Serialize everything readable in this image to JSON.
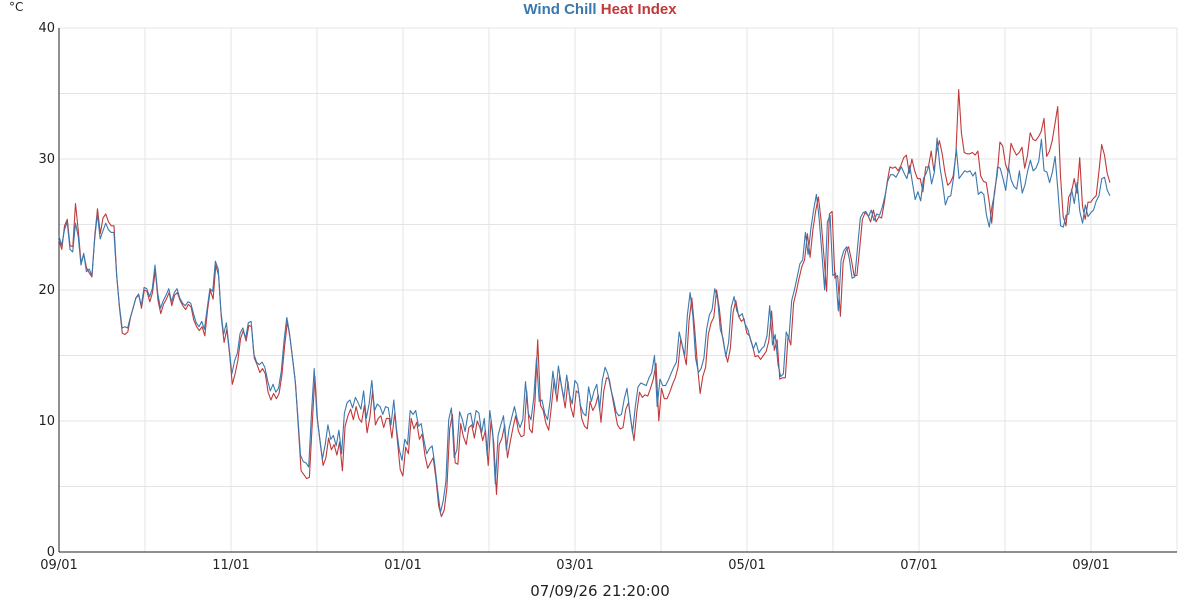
{
  "chart_data": {
    "type": "line",
    "title_parts": [
      "Wind Chill",
      "Heat Index"
    ],
    "unit": "°C",
    "footer": "07/09/26 21:20:00",
    "ylim": [
      0,
      40
    ],
    "yticks": [
      "0",
      "10",
      "20",
      "30",
      "40"
    ],
    "xticks": [
      "09/01",
      "11/01",
      "01/01",
      "03/01",
      "05/01",
      "07/01",
      "09/01"
    ],
    "grid": true,
    "colors": {
      "wind_chill": "#3a78ad",
      "heat_index": "#c0393b"
    },
    "series": [
      {
        "name": "Wind Chill",
        "values": [
          24.1,
          23.4,
          24.6,
          25.2,
          23.1,
          22.9,
          25.1,
          24.1,
          21.9,
          22.8,
          21.4,
          21.6,
          21.1,
          23.9,
          25.8,
          23.9,
          24.5,
          25.1,
          24.6,
          24.4,
          24.4,
          21.2,
          18.8,
          17.1,
          17.2,
          17.1,
          17.9,
          18.6,
          19.4,
          19.7,
          18.8,
          20.2,
          20.1,
          19.5,
          20.1,
          21.9,
          19.7,
          18.6,
          19.2,
          19.6,
          20.1,
          19.1,
          19.8,
          20.1,
          19.4,
          19.0,
          18.8,
          19.1,
          19.0,
          18.2,
          17.5,
          17.2,
          17.6,
          17.0,
          18.6,
          20.1,
          19.9,
          22.2,
          21.6,
          18.4,
          16.6,
          17.5,
          15.6,
          13.6,
          14.6,
          15.2,
          16.7,
          17.1,
          16.3,
          17.5,
          17.6,
          15.1,
          14.5,
          14.3,
          14.5,
          14.1,
          13.1,
          12.3,
          12.8,
          12.2,
          12.5,
          13.8,
          16.1,
          17.9,
          16.7,
          14.9,
          13.2,
          10.5,
          7.4,
          6.9,
          6.8,
          6.5,
          10.6,
          14.0,
          10.4,
          8.7,
          7.1,
          8.2,
          9.7,
          8.6,
          8.9,
          8.1,
          9.3,
          7.5,
          10.6,
          11.4,
          11.6,
          11.0,
          11.8,
          11.4,
          10.9,
          12.3,
          10.2,
          11.3,
          13.1,
          10.8,
          11.3,
          11.1,
          10.5,
          11.1,
          11.0,
          9.7,
          11.6,
          9.4,
          7.8,
          7.0,
          8.6,
          8.2,
          10.8,
          10.5,
          10.8,
          9.6,
          9.8,
          8.5,
          7.5,
          7.9,
          8.1,
          6.6,
          4.7,
          3.0,
          3.9,
          5.4,
          10.1,
          11.0,
          7.2,
          7.8,
          10.7,
          10.1,
          9.2,
          10.5,
          10.6,
          9.5,
          10.8,
          10.6,
          9.1,
          10.2,
          7.4,
          10.8,
          9.2,
          5.2,
          8.9,
          9.7,
          10.4,
          7.8,
          9.4,
          10.3,
          11.1,
          10.1,
          9.5,
          10.1,
          13.0,
          10.6,
          10.1,
          11.7,
          14.8,
          11.5,
          11.6,
          10.6,
          10.1,
          11.6,
          13.8,
          12.1,
          14.2,
          12.8,
          11.7,
          13.5,
          12.0,
          11.3,
          13.1,
          12.8,
          11.2,
          10.6,
          10.4,
          12.6,
          11.5,
          12.3,
          12.8,
          10.8,
          13.1,
          14.1,
          13.6,
          12.5,
          11.7,
          10.7,
          10.4,
          10.5,
          11.7,
          12.5,
          10.7,
          9.1,
          11.1,
          12.6,
          12.9,
          12.8,
          12.7,
          13.3,
          13.7,
          15.0,
          11.1,
          13.2,
          12.7,
          12.7,
          13.1,
          13.6,
          14.1,
          14.5,
          16.8,
          15.9,
          15.0,
          18.1,
          19.8,
          18.0,
          14.8,
          13.7,
          14.0,
          14.8,
          17.0,
          18.1,
          18.5,
          20.1,
          19.3,
          17.0,
          16.3,
          14.9,
          16.0,
          18.7,
          19.5,
          18.4,
          18.0,
          18.2,
          17.4,
          17.0,
          16.2,
          15.5,
          16.0,
          15.2,
          15.5,
          15.7,
          16.5,
          18.8,
          15.8,
          16.6,
          14.3,
          13.4,
          13.6,
          16.8,
          16.3,
          19.2,
          20.0,
          21.0,
          22.0,
          22.3,
          24.4,
          22.7,
          24.7,
          26.1,
          27.3,
          25.5,
          22.8,
          20.0,
          25.2,
          25.7,
          21.1,
          21.3,
          18.4,
          22.3,
          23.0,
          23.3,
          22.4,
          20.9,
          21.0,
          23.2,
          25.5,
          25.9,
          26.0,
          25.6,
          26.1,
          25.3,
          25.8,
          25.7,
          26.3,
          27.2,
          28.3,
          28.8,
          28.8,
          28.6,
          29.0,
          29.4,
          28.9,
          28.5,
          29.5,
          28.2,
          26.9,
          27.5,
          26.8,
          28.5,
          28.9,
          29.5,
          28.1,
          29.0,
          31.6,
          29.4,
          28.1,
          26.5,
          27.1,
          27.2,
          28.6,
          30.8,
          28.5,
          28.8,
          29.1,
          29.0,
          29.1,
          28.7,
          29.0,
          27.3,
          27.5,
          27.3,
          25.7,
          24.8,
          26.4,
          27.4,
          29.4,
          29.3,
          28.5,
          27.6,
          29.4,
          28.4,
          27.9,
          27.7,
          29.1,
          27.4,
          28.0,
          29.1,
          29.9,
          29.1,
          29.3,
          29.8,
          31.5,
          29.1,
          29.0,
          28.2,
          29.0,
          30.2,
          27.6,
          24.9,
          24.8,
          25.7,
          25.8,
          27.7,
          26.6,
          28.2,
          26.0,
          25.1,
          26.5,
          25.6,
          25.9,
          26.1,
          26.8,
          27.2,
          28.5,
          28.6,
          27.6,
          27.2
        ]
      },
      {
        "name": "Heat Index",
        "values": [
          23.8,
          23.1,
          24.9,
          25.4,
          23.4,
          23.3,
          26.6,
          24.5,
          22.1,
          22.7,
          21.7,
          21.3,
          21.0,
          24.2,
          26.2,
          24.3,
          25.5,
          25.8,
          25.2,
          24.9,
          24.9,
          21.0,
          18.6,
          16.7,
          16.6,
          16.8,
          17.9,
          18.7,
          19.4,
          19.6,
          18.6,
          20.0,
          19.9,
          19.1,
          19.8,
          21.5,
          19.2,
          18.2,
          18.9,
          19.3,
          19.8,
          18.8,
          19.6,
          19.8,
          19.2,
          18.8,
          18.5,
          18.9,
          18.7,
          17.7,
          17.2,
          16.9,
          17.2,
          16.5,
          18.5,
          20.0,
          19.3,
          21.9,
          21.1,
          17.9,
          16.0,
          17.0,
          15.1,
          12.8,
          13.6,
          14.6,
          16.3,
          16.9,
          16.1,
          17.3,
          17.2,
          14.8,
          14.3,
          13.7,
          14.0,
          13.6,
          12.2,
          11.6,
          12.1,
          11.7,
          12.1,
          13.5,
          15.7,
          17.6,
          16.3,
          14.6,
          12.8,
          9.4,
          6.2,
          5.9,
          5.6,
          5.7,
          9.6,
          13.4,
          10.0,
          8.2,
          6.6,
          7.2,
          8.7,
          7.8,
          8.2,
          7.4,
          8.4,
          6.2,
          9.6,
          10.4,
          10.9,
          10.1,
          11.1,
          10.2,
          9.9,
          11.2,
          9.1,
          10.3,
          12.3,
          9.7,
          10.2,
          10.4,
          9.5,
          10.2,
          10.2,
          8.7,
          10.6,
          8.5,
          6.3,
          5.8,
          8.0,
          7.5,
          10.2,
          9.4,
          9.9,
          8.6,
          9.0,
          7.4,
          6.4,
          6.8,
          7.2,
          5.6,
          3.5,
          2.7,
          3.2,
          4.9,
          9.4,
          10.5,
          6.8,
          6.7,
          9.8,
          8.8,
          8.2,
          9.5,
          9.7,
          8.7,
          10.0,
          9.5,
          8.5,
          9.3,
          6.6,
          10.0,
          8.4,
          4.4,
          8.2,
          8.7,
          9.7,
          7.2,
          8.4,
          9.5,
          10.4,
          9.2,
          8.8,
          8.9,
          12.3,
          9.4,
          9.1,
          11.5,
          16.2,
          11.2,
          10.8,
          9.8,
          9.3,
          11.2,
          13.2,
          11.5,
          13.5,
          12.2,
          11.0,
          13.0,
          11.1,
          10.3,
          12.3,
          12.1,
          10.2,
          9.6,
          9.4,
          11.5,
          10.8,
          11.2,
          12.0,
          9.9,
          12.3,
          13.3,
          13.2,
          12.0,
          10.8,
          9.7,
          9.4,
          9.5,
          10.9,
          11.4,
          9.8,
          8.5,
          10.7,
          12.2,
          11.8,
          12.0,
          11.9,
          12.5,
          13.2,
          14.4,
          10.0,
          12.5,
          11.7,
          11.7,
          12.2,
          12.8,
          13.3,
          14.1,
          16.3,
          15.3,
          14.3,
          17.6,
          19.4,
          17.1,
          14.4,
          12.1,
          13.4,
          14.1,
          16.6,
          17.5,
          17.9,
          20.0,
          18.6,
          16.6,
          15.4,
          14.5,
          15.5,
          18.3,
          19.2,
          18.0,
          17.6,
          17.8,
          16.7,
          16.5,
          15.8,
          14.9,
          15.0,
          14.7,
          15.0,
          15.3,
          16.1,
          18.4,
          15.4,
          16.2,
          13.2,
          13.3,
          13.3,
          16.5,
          15.8,
          19.0,
          19.9,
          20.9,
          21.8,
          22.3,
          24.3,
          22.5,
          24.6,
          26.0,
          27.1,
          25.3,
          22.6,
          19.9,
          25.8,
          26.0,
          20.9,
          21.1,
          18.0,
          22.1,
          23.0,
          23.3,
          22.3,
          21.1,
          21.1,
          23.1,
          25.4,
          25.9,
          25.7,
          25.2,
          26.1,
          25.2,
          25.6,
          25.5,
          26.7,
          28.2,
          29.4,
          29.3,
          29.4,
          29.1,
          29.5,
          30.1,
          30.3,
          28.9,
          30.0,
          29.1,
          28.5,
          28.5,
          27.5,
          29.4,
          29.4,
          30.6,
          29.1,
          30.6,
          31.4,
          30.4,
          29.0,
          28.0,
          28.2,
          28.7,
          30.4,
          35.3,
          32.0,
          30.5,
          30.4,
          30.4,
          30.5,
          30.3,
          30.6,
          28.7,
          28.3,
          28.2,
          26.9,
          25.1,
          27.5,
          28.8,
          31.3,
          31.0,
          29.6,
          29.0,
          31.2,
          30.7,
          30.3,
          30.5,
          30.9,
          29.3,
          30.3,
          32.0,
          31.5,
          31.4,
          31.7,
          32.1,
          33.1,
          30.2,
          30.6,
          31.4,
          32.7,
          34.0,
          28.7,
          25.6,
          24.9,
          27.1,
          27.5,
          28.5,
          27.4,
          30.1,
          26.4,
          25.4,
          26.7,
          26.7,
          27.0,
          27.2,
          29.1,
          31.1,
          30.3,
          28.9,
          28.2
        ]
      }
    ]
  }
}
